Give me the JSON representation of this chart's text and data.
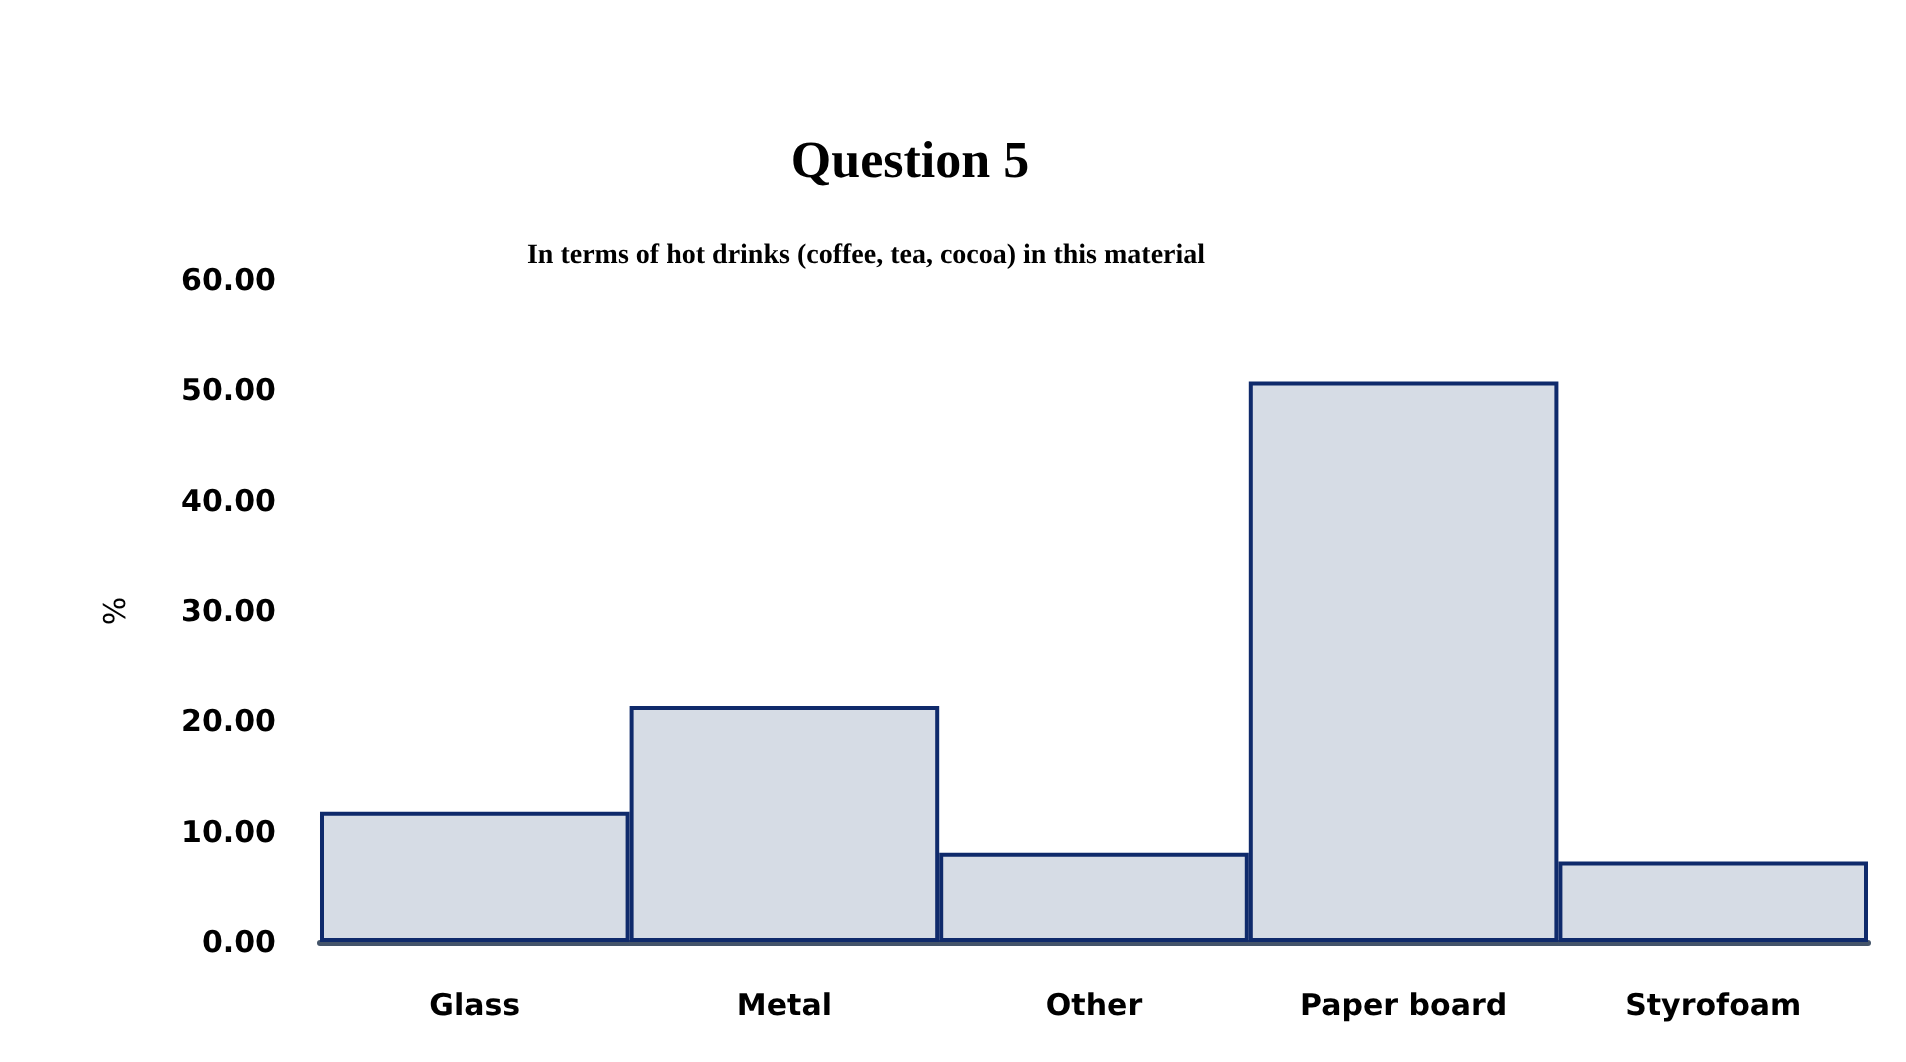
{
  "chart_data": {
    "type": "bar",
    "title": "Question 5",
    "subtitle": "In terms of hot drinks (coffee, tea, cocoa) in this material",
    "ylabel": "%",
    "categories": [
      "Glass",
      "Metal",
      "Other",
      "Paper board",
      "Styrofoam"
    ],
    "values": [
      11.8,
      21.4,
      8.1,
      50.8,
      7.3
    ],
    "color": "#d6dce5",
    "ylim": [
      0,
      60
    ],
    "yticks": [
      {
        "value": 0,
        "label": "0.00"
      },
      {
        "value": 10,
        "label": "10.00"
      },
      {
        "value": 20,
        "label": "20.00"
      },
      {
        "value": 30,
        "label": "30.00"
      },
      {
        "value": 40,
        "label": "40.00"
      },
      {
        "value": 50,
        "label": "50.00"
      },
      {
        "value": 60,
        "label": "60.00"
      }
    ],
    "grid": false
  }
}
